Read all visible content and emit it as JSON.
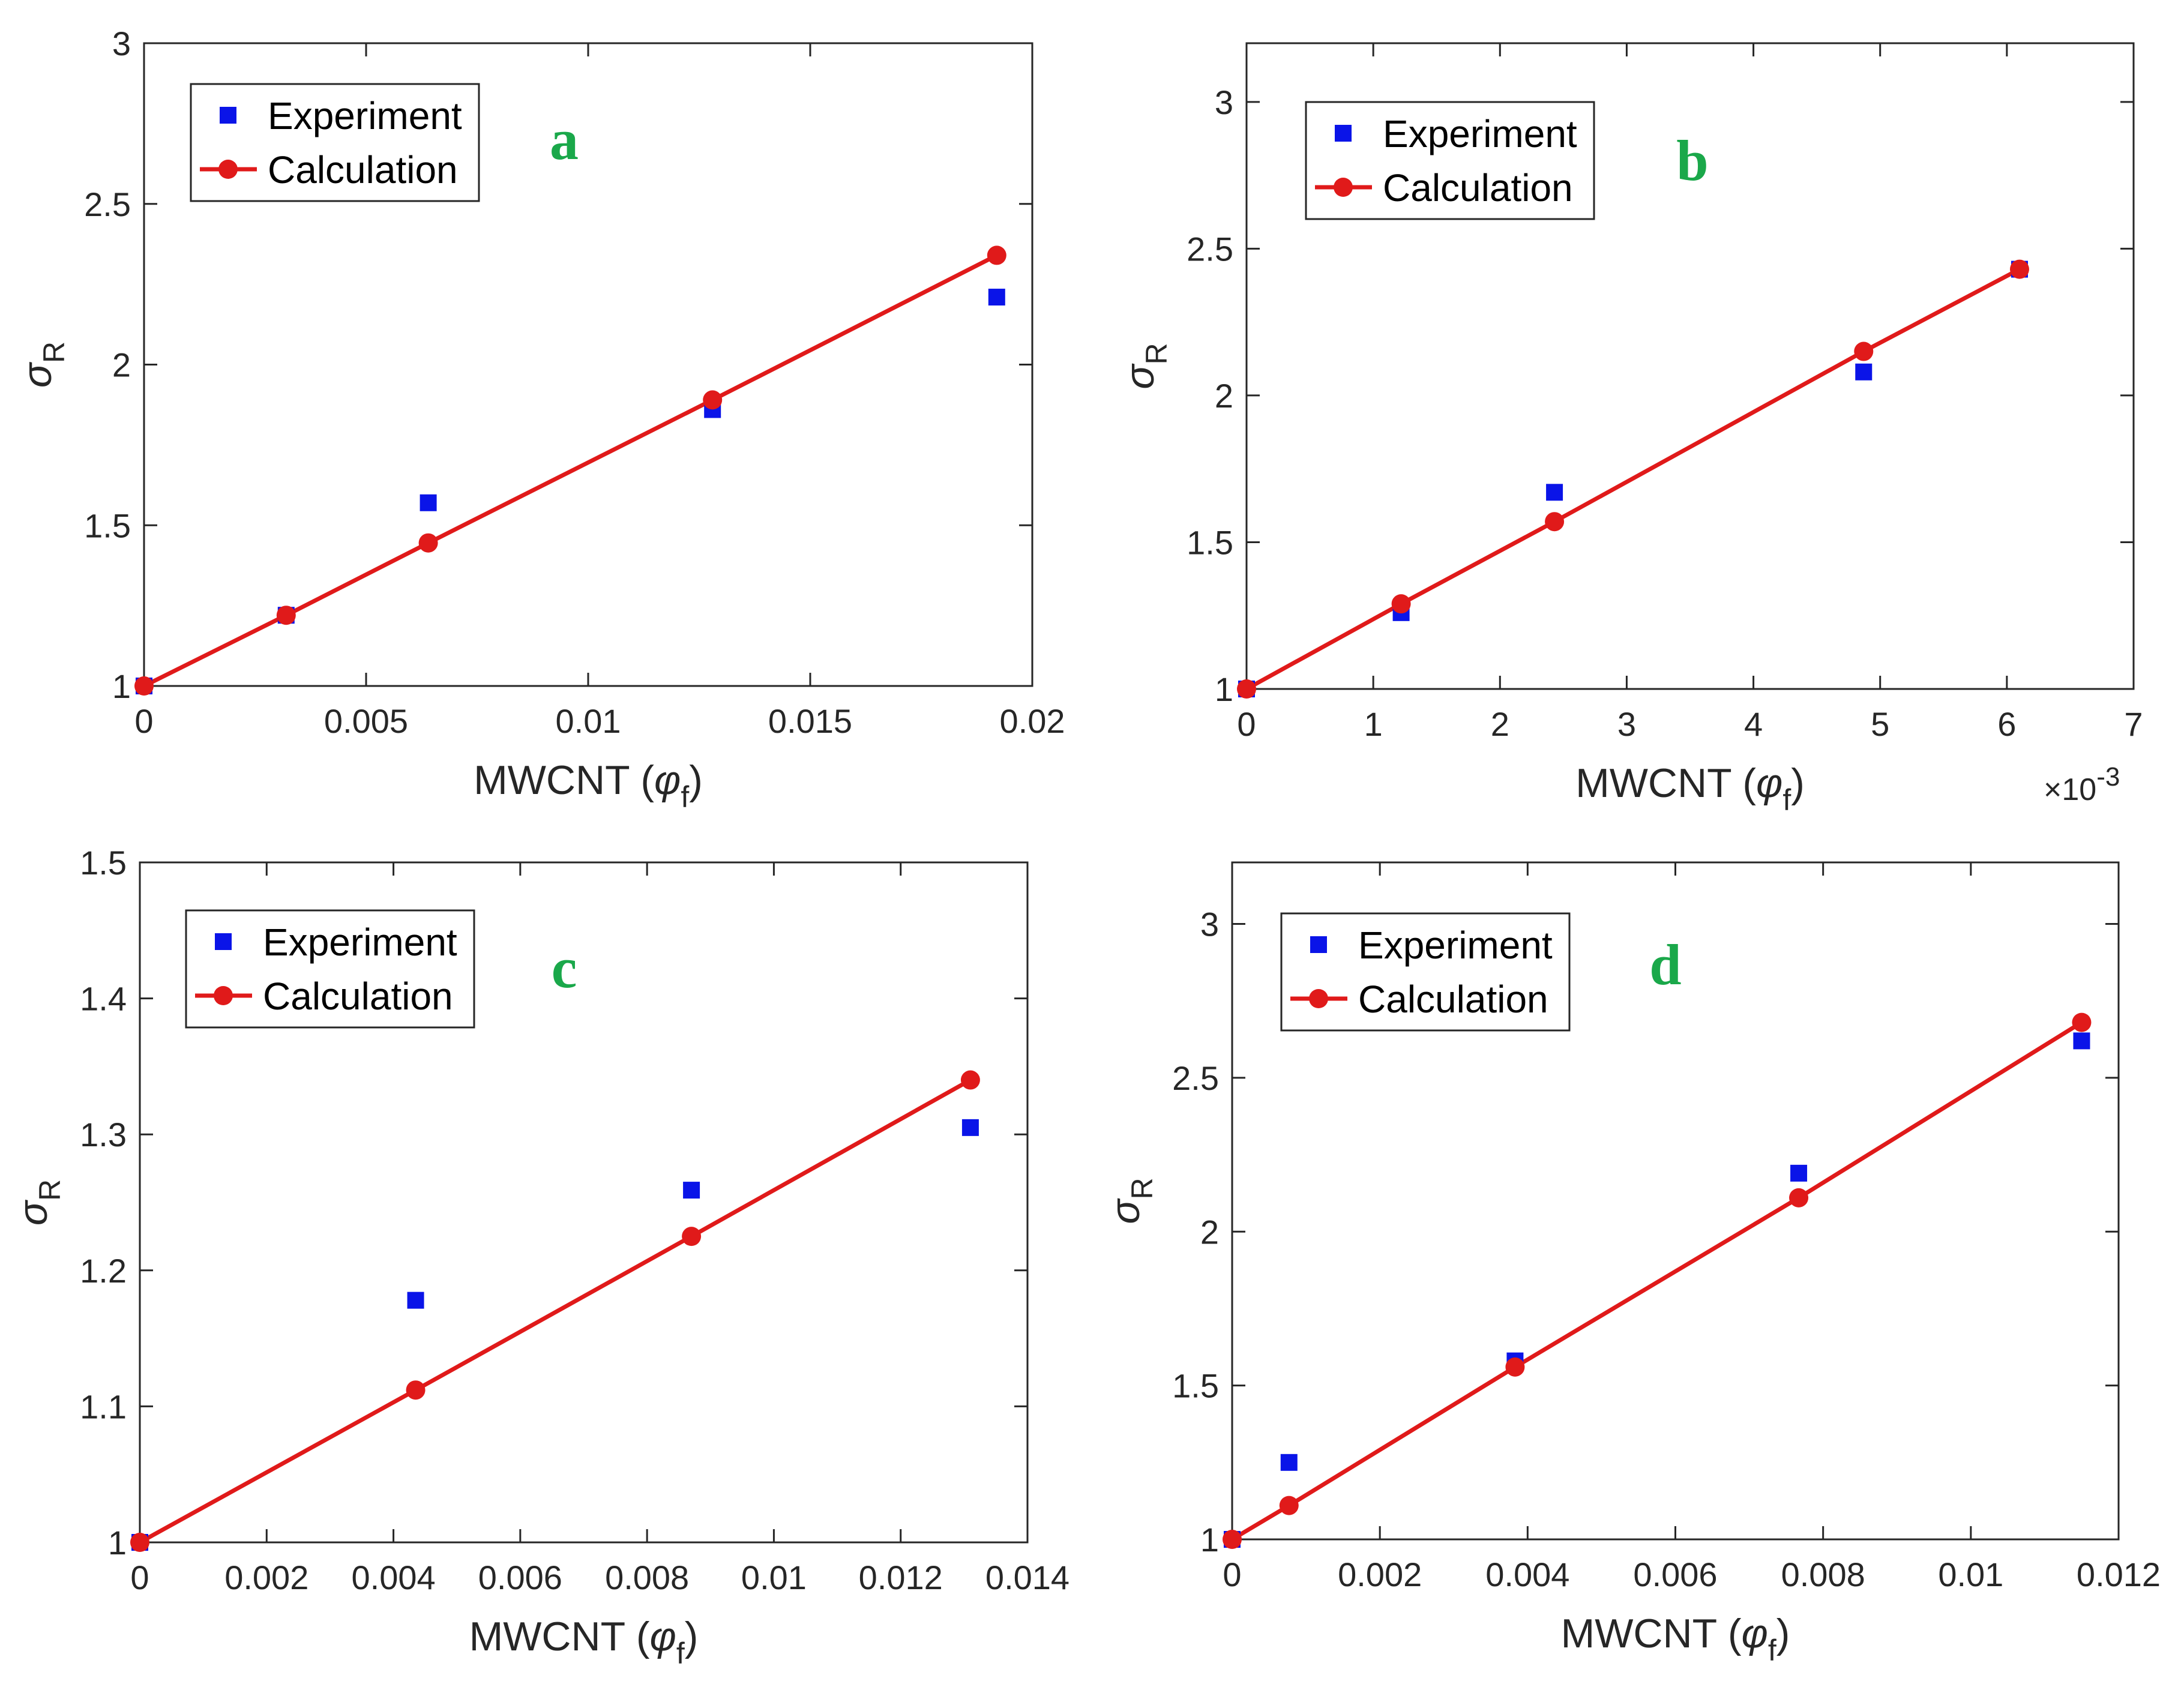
{
  "figure": {
    "description_free": true
  },
  "colors": {
    "experiment": "#0a14e8",
    "calculation": "#e01a1a",
    "panel_letter": "#1aa84a",
    "axis": "#262626"
  },
  "legend": {
    "experiment_label": "Experiment",
    "calculation_label": "Calculation"
  },
  "chart_data": [
    {
      "type": "scatter",
      "panel": "a",
      "xlabel_main": "MWCNT (",
      "xlabel_symbol": "φ",
      "xlabel_sub": "f",
      "xlabel_close": ")",
      "ylabel_symbol": "σ",
      "ylabel_sub": "R",
      "xlim": [
        0,
        0.02
      ],
      "ylim": [
        1,
        3
      ],
      "xticks": [
        0,
        0.005,
        0.01,
        0.015,
        0.02
      ],
      "xtick_labels": [
        "0",
        "0.005",
        "0.01",
        "0.015",
        "0.02"
      ],
      "yticks": [
        1,
        1.5,
        2,
        2.5,
        3
      ],
      "ytick_labels": [
        "1",
        "1.5",
        "2",
        "2.5",
        "3"
      ],
      "exponent": "",
      "series": [
        {
          "name": "Experiment",
          "x": [
            0,
            0.0032,
            0.0064,
            0.0128,
            0.0192
          ],
          "y": [
            1.0,
            1.22,
            1.57,
            1.86,
            2.21
          ]
        },
        {
          "name": "Calculation",
          "x": [
            0,
            0.0032,
            0.0064,
            0.0128,
            0.0192
          ],
          "y": [
            1.0,
            1.22,
            1.445,
            1.89,
            2.34
          ]
        }
      ]
    },
    {
      "type": "scatter",
      "panel": "b",
      "xlabel_main": "MWCNT (",
      "xlabel_symbol": "φ",
      "xlabel_sub": "f",
      "xlabel_close": ")",
      "ylabel_symbol": "σ",
      "ylabel_sub": "R",
      "xlim": [
        0,
        7
      ],
      "ylim": [
        1,
        3.2
      ],
      "xticks": [
        0,
        1,
        2,
        3,
        4,
        5,
        6,
        7
      ],
      "xtick_labels": [
        "0",
        "1",
        "2",
        "3",
        "4",
        "5",
        "6",
        "7"
      ],
      "yticks": [
        1,
        1.5,
        2,
        2.5,
        3
      ],
      "ytick_labels": [
        "1",
        "1.5",
        "2",
        "2.5",
        "3"
      ],
      "exponent": "×10",
      "exponent_power": "-3",
      "series": [
        {
          "name": "Experiment",
          "x": [
            0,
            1.22,
            2.43,
            4.87,
            6.1
          ],
          "y": [
            1.0,
            1.26,
            1.67,
            2.08,
            2.43
          ]
        },
        {
          "name": "Calculation",
          "x": [
            0,
            1.22,
            2.43,
            4.87,
            6.1
          ],
          "y": [
            1.0,
            1.29,
            1.57,
            2.15,
            2.43
          ]
        }
      ]
    },
    {
      "type": "scatter",
      "panel": "c",
      "xlabel_main": "MWCNT (",
      "xlabel_symbol": "φ",
      "xlabel_sub": "f",
      "xlabel_close": ")",
      "ylabel_symbol": "σ",
      "ylabel_sub": "R",
      "xlim": [
        0,
        0.014
      ],
      "ylim": [
        1,
        1.5
      ],
      "xticks": [
        0,
        0.002,
        0.004,
        0.006,
        0.008,
        0.01,
        0.012,
        0.014
      ],
      "xtick_labels": [
        "0",
        "0.002",
        "0.004",
        "0.006",
        "0.008",
        "0.01",
        "0.012",
        "0.014"
      ],
      "yticks": [
        1,
        1.1,
        1.2,
        1.3,
        1.4,
        1.5
      ],
      "ytick_labels": [
        "1",
        "1.1",
        "1.2",
        "1.3",
        "1.4",
        "1.5"
      ],
      "exponent": "",
      "series": [
        {
          "name": "Experiment",
          "x": [
            0,
            0.00435,
            0.0087,
            0.0131
          ],
          "y": [
            1.0,
            1.178,
            1.259,
            1.305
          ]
        },
        {
          "name": "Calculation",
          "x": [
            0,
            0.00435,
            0.0087,
            0.0131
          ],
          "y": [
            1.0,
            1.112,
            1.225,
            1.34
          ]
        }
      ]
    },
    {
      "type": "scatter",
      "panel": "d",
      "xlabel_main": "MWCNT (",
      "xlabel_symbol": "φ",
      "xlabel_sub": "f",
      "xlabel_close": ")",
      "ylabel_symbol": "σ",
      "ylabel_sub": "R",
      "xlim": [
        0,
        0.012
      ],
      "ylim": [
        1,
        3.2
      ],
      "xticks": [
        0,
        0.002,
        0.004,
        0.006,
        0.008,
        0.01,
        0.012
      ],
      "xtick_labels": [
        "0",
        "0.002",
        "0.004",
        "0.006",
        "0.008",
        "0.01",
        "0.012"
      ],
      "yticks": [
        1,
        1.5,
        2,
        2.5,
        3
      ],
      "ytick_labels": [
        "1",
        "1.5",
        "2",
        "2.5",
        "3"
      ],
      "exponent": "",
      "series": [
        {
          "name": "Experiment",
          "x": [
            0,
            0.00077,
            0.00383,
            0.00767,
            0.0115
          ],
          "y": [
            1.0,
            1.25,
            1.58,
            2.19,
            2.62
          ]
        },
        {
          "name": "Calculation",
          "x": [
            0,
            0.00077,
            0.00383,
            0.00767,
            0.0115
          ],
          "y": [
            1.0,
            1.11,
            1.56,
            2.11,
            2.68
          ]
        }
      ]
    }
  ]
}
